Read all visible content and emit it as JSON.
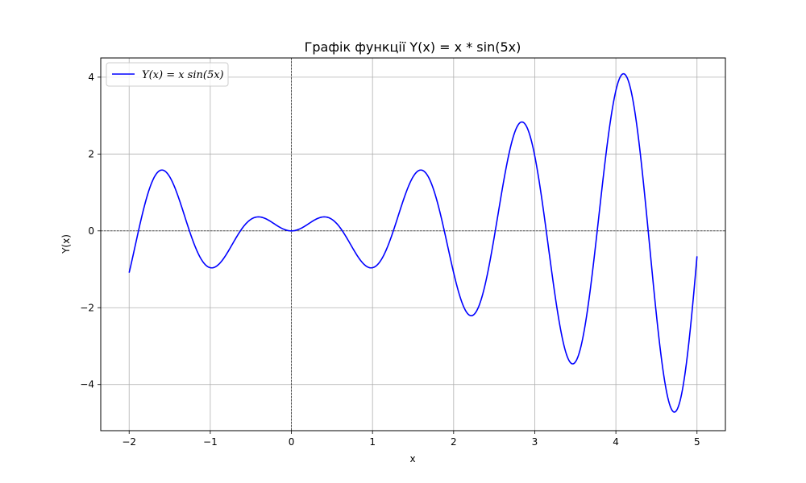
{
  "chart_data": {
    "type": "line",
    "title": "Графік функції Y(x) = x * sin(5x)",
    "xlabel": "x",
    "ylabel": "Y(x)",
    "xlim": [
      -2.35,
      5.35
    ],
    "ylim": [
      -5.2,
      4.5
    ],
    "x_ticks": [
      -2,
      -1,
      0,
      1,
      2,
      3,
      4,
      5
    ],
    "y_ticks": [
      -4,
      -2,
      0,
      2,
      4
    ],
    "x_tick_labels": [
      "−2",
      "−1",
      "0",
      "1",
      "2",
      "3",
      "4",
      "5"
    ],
    "y_tick_labels": [
      "−4",
      "−2",
      "0",
      "2",
      "4"
    ],
    "grid": true,
    "legend": {
      "placement": "top-left",
      "entries": [
        "Y(x) = x sin(5x)"
      ]
    },
    "series": [
      {
        "name": "Y(x) = x sin(5x)",
        "color": "#0000ff",
        "function": "x * sin(5x)",
        "x_range": [
          -2,
          5
        ],
        "points": [
          [
            -2.0,
            -1.09
          ],
          [
            -1.6,
            1.59
          ],
          [
            -1.3,
            0.28
          ],
          [
            -0.98,
            -0.96
          ],
          [
            -0.7,
            0.25
          ],
          [
            -0.41,
            0.36
          ],
          [
            0.0,
            0.0
          ],
          [
            0.41,
            0.36
          ],
          [
            0.7,
            0.25
          ],
          [
            0.98,
            -0.96
          ],
          [
            1.3,
            0.28
          ],
          [
            1.6,
            1.59
          ],
          [
            1.9,
            -0.1
          ],
          [
            2.21,
            -2.2
          ],
          [
            2.5,
            -0.17
          ],
          [
            2.83,
            2.83
          ],
          [
            3.15,
            0.1
          ],
          [
            3.46,
            -3.46
          ],
          [
            3.78,
            0.1
          ],
          [
            4.09,
            4.09
          ],
          [
            4.4,
            0.01
          ],
          [
            4.71,
            -4.71
          ],
          [
            5.0,
            -0.66
          ]
        ]
      }
    ],
    "reference_lines": [
      {
        "axis": "y",
        "value": 0,
        "style": "dashed",
        "color": "#000000"
      },
      {
        "axis": "x",
        "value": 0,
        "style": "dashed",
        "color": "#000000"
      }
    ]
  }
}
